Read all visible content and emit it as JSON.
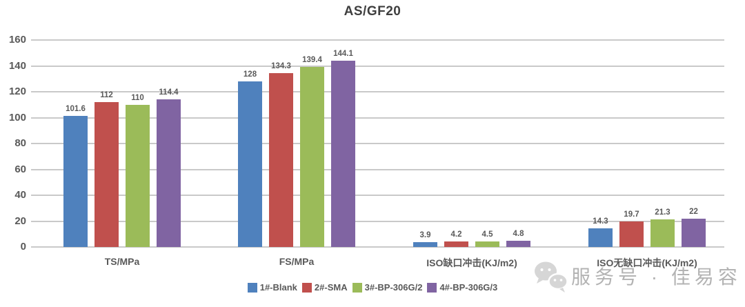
{
  "chart_data": {
    "type": "bar",
    "title": "AS/GF20",
    "categories": [
      "TS/MPa",
      "FS/MPa",
      "ISO缺口冲击(KJ/m2)",
      "ISO无缺口冲击(KJ/m2)"
    ],
    "series": [
      {
        "name": "1#-Blank",
        "color": "#4F81BD",
        "values": [
          101.6,
          128,
          3.9,
          14.3
        ]
      },
      {
        "name": "2#-SMA",
        "color": "#C0504D",
        "values": [
          112,
          134.3,
          4.2,
          19.7
        ]
      },
      {
        "name": "3#-BP-306G/2",
        "color": "#9BBB59",
        "values": [
          110,
          139.4,
          4.5,
          21.3
        ]
      },
      {
        "name": "4#-BP-306G/3",
        "color": "#8064A2",
        "values": [
          114.4,
          144.1,
          4.8,
          22
        ]
      }
    ],
    "ylim": [
      0,
      160
    ],
    "yticks": [
      0,
      20,
      40,
      60,
      80,
      100,
      120,
      140,
      160
    ],
    "grid": true,
    "data_labels": true,
    "legend_position": "bottom",
    "xlabel": "",
    "ylabel": ""
  },
  "watermark": {
    "icon": "wechat-icon",
    "text": "服务号 · 佳易容"
  },
  "colors": {
    "background": "#FFFFFF",
    "grid": "#C9C9C9",
    "axis_text": "#595959",
    "title_text": "#3F3F3F",
    "watermark": "#B3B3B3",
    "watermark_icon": "#D6D6D6"
  }
}
